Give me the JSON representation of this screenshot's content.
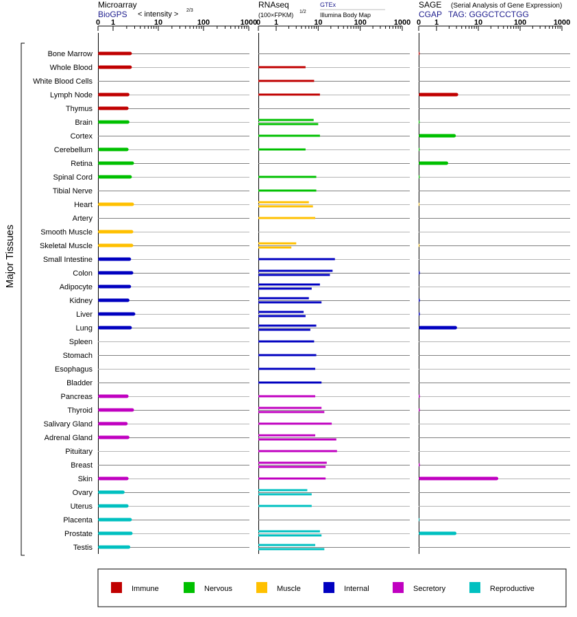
{
  "chart_data": {
    "type": "bar",
    "y_axis_label": "Major Tissues",
    "axis_ticks": [
      "0",
      "1",
      "10",
      "100",
      "1000"
    ],
    "tissues": [
      "Bone Marrow",
      "Whole Blood",
      "White Blood Cells",
      "Lymph Node",
      "Thymus",
      "Brain",
      "Cortex",
      "Cerebellum",
      "Retina",
      "Spinal Cord",
      "Tibial Nerve",
      "Heart",
      "Artery",
      "Smooth Muscle",
      "Skeletal Muscle",
      "Small Intestine",
      "Colon",
      "Adipocyte",
      "Kidney",
      "Liver",
      "Lung",
      "Spleen",
      "Stomach",
      "Esophagus",
      "Bladder",
      "Pancreas",
      "Thyroid",
      "Salivary Gland",
      "Adrenal Gland",
      "Pituitary",
      "Breast",
      "Skin",
      "Ovary",
      "Uterus",
      "Placenta",
      "Prostate",
      "Testis"
    ],
    "tissue_category": [
      "Immune",
      "Immune",
      "Immune",
      "Immune",
      "Immune",
      "Nervous",
      "Nervous",
      "Nervous",
      "Nervous",
      "Nervous",
      "Nervous",
      "Muscle",
      "Muscle",
      "Muscle",
      "Muscle",
      "Internal",
      "Internal",
      "Internal",
      "Internal",
      "Internal",
      "Internal",
      "Internal",
      "Internal",
      "Internal",
      "Internal",
      "Secretory",
      "Secretory",
      "Secretory",
      "Secretory",
      "Secretory",
      "Secretory",
      "Secretory",
      "Reproductive",
      "Reproductive",
      "Reproductive",
      "Reproductive",
      "Reproductive"
    ],
    "categories": [
      {
        "name": "Immune",
        "color": "#c00000"
      },
      {
        "name": "Nervous",
        "color": "#00c000"
      },
      {
        "name": "Muscle",
        "color": "#ffc000"
      },
      {
        "name": "Internal",
        "color": "#0000c0"
      },
      {
        "name": "Secretory",
        "color": "#c000c0"
      },
      {
        "name": "Reproductive",
        "color": "#00c0c0"
      }
    ],
    "panels": [
      {
        "id": "microarray",
        "title": "Microarray",
        "source": "BioGPS",
        "unit_label": "< intensity >",
        "unit_exponent": "2/3",
        "values": [
          [
            2.6
          ],
          [
            2.6
          ],
          [],
          [
            2.3
          ],
          [
            2.2
          ],
          [
            2.3
          ],
          [],
          [
            2.2
          ],
          [
            2.9
          ],
          [
            2.6
          ],
          [],
          [
            2.9
          ],
          [],
          [
            2.8
          ],
          [
            2.8
          ],
          [
            2.5
          ],
          [
            2.8
          ],
          [
            2.5
          ],
          [
            2.3
          ],
          [
            3.1
          ],
          [
            2.6
          ],
          [],
          [],
          [],
          [],
          [
            2.2
          ],
          [
            2.9
          ],
          [
            2.1
          ],
          [
            2.3
          ],
          [],
          [],
          [
            2.2
          ],
          [
            1.8
          ],
          [
            2.2
          ],
          [
            2.6
          ],
          [
            2.7
          ],
          [
            2.4
          ]
        ]
      },
      {
        "id": "rnaseq",
        "title": "RNAseq",
        "unit_label": "(100×FPKM)",
        "unit_exponent": "1/2",
        "sources": [
          "GTEx",
          "Illumina Body Map"
        ],
        "values": [
          [],
          [
            5.0
          ],
          [
            8.0
          ],
          [
            11.0
          ],
          [],
          [
            7.8,
            10.0
          ],
          [
            11.0
          ],
          [
            5.0
          ],
          [],
          [
            9.0
          ],
          [
            9.0
          ],
          [
            6.0,
            7.5
          ],
          [
            8.5
          ],
          [],
          [
            3.0,
            2.3
          ],
          [
            25.0
          ],
          [
            22.0,
            19.0
          ],
          [
            11.0,
            7.0
          ],
          [
            6.0,
            12.0
          ],
          [
            4.5,
            5.0
          ],
          [
            9.0,
            6.5
          ],
          [
            8.0
          ],
          [
            9.0
          ],
          [
            8.5
          ],
          [
            12.0
          ],
          [
            8.5
          ],
          [
            12.0,
            14.0
          ],
          [
            21.0
          ],
          [
            8.5,
            27.0
          ],
          [
            28.0
          ],
          [
            16.0,
            15.0
          ],
          [
            15.0
          ],
          [
            5.5,
            7.0
          ],
          [
            7.0
          ],
          [],
          [
            11.0,
            12.0
          ],
          [
            8.5,
            14.0
          ]
        ]
      },
      {
        "id": "sage",
        "title": "SAGE",
        "subtitle": "(Serial Analysis of Gene Expression)",
        "source": "CGAP",
        "tag": "TAG: GGGCTCCTGG",
        "values": [
          [
            0.05
          ],
          [],
          [],
          [
            3.3
          ],
          [],
          [
            0.05
          ],
          [
            2.9
          ],
          [
            0.05
          ],
          [
            1.9
          ],
          [
            0.05
          ],
          [],
          [
            0.02
          ],
          [],
          [],
          [
            0.02
          ],
          [],
          [
            0.06
          ],
          [],
          [
            0.06
          ],
          [
            0.06
          ],
          [
            3.1
          ],
          [],
          [],
          [],
          [],
          [
            0.06
          ],
          [
            0.06
          ],
          [],
          [],
          [],
          [
            0.06
          ],
          [
            30.0
          ],
          [],
          [],
          [
            0.02
          ],
          [
            3.0
          ],
          []
        ]
      }
    ],
    "legend_position": "bottom"
  }
}
